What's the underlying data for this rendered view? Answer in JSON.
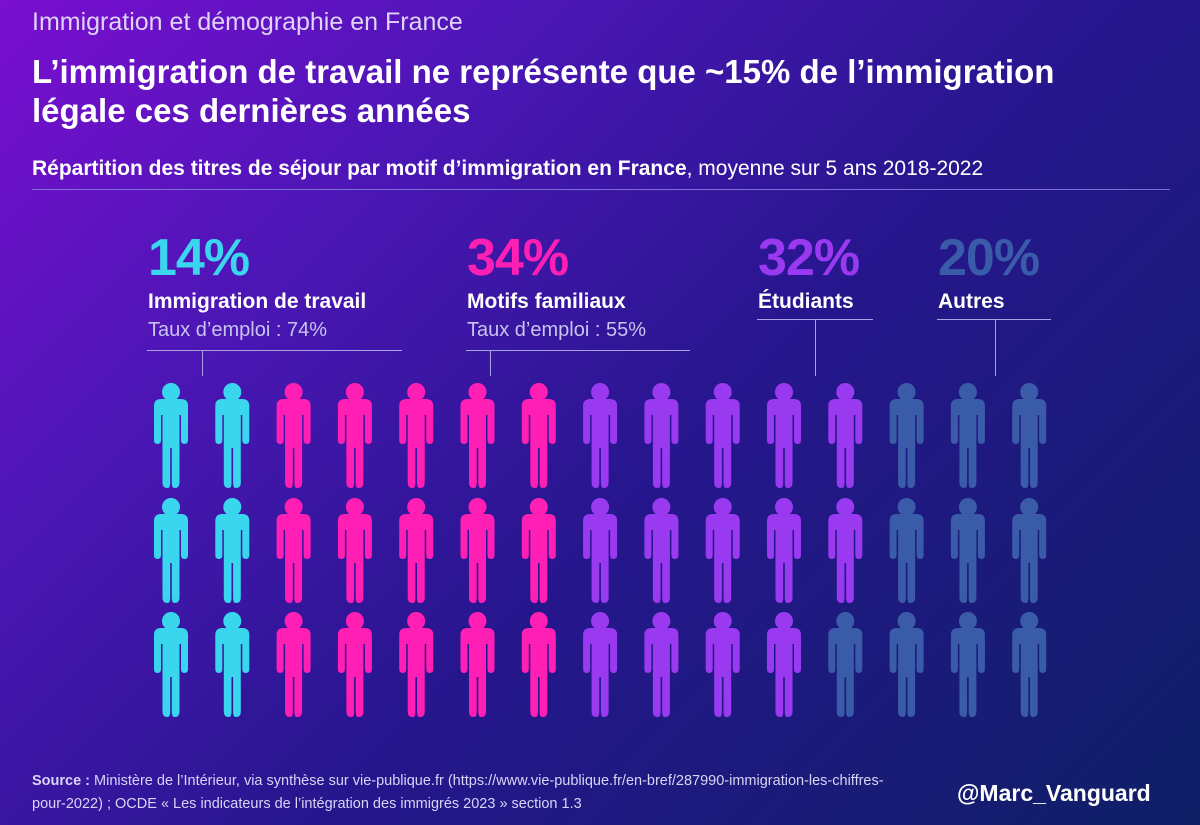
{
  "header": {
    "kicker": "Immigration et démographie en France",
    "headline": "L’immigration de travail ne représente que ~15% de l’immigration légale ces dernières années",
    "subtitle_bold": "Répartition des titres de séjour par motif d’immigration en France",
    "subtitle_rest": ", moyenne sur 5 ans 2018-2022"
  },
  "chart_data": {
    "type": "pictogram",
    "unit_count": 45,
    "rows": 3,
    "columns": 15,
    "series": [
      {
        "name": "Immigration de travail",
        "percent_label": "14%",
        "value": 14,
        "note": "Taux d’emploi : 74%",
        "color": "#3ad6ee",
        "icons": 6
      },
      {
        "name": "Motifs familiaux",
        "percent_label": "34%",
        "value": 34,
        "note": "Taux d’emploi : 55%",
        "color": "#ff1fb4",
        "icons": 15
      },
      {
        "name": "Étudiants",
        "percent_label": "32%",
        "value": 32,
        "note": "",
        "color": "#9a3af0",
        "icons": 14
      },
      {
        "name": "Autres",
        "percent_label": "20%",
        "value": 20,
        "note": "",
        "color": "#3a5ba8",
        "icons": 10
      }
    ],
    "icon_layout_by_row": [
      [
        "Immigration de travail",
        "Immigration de travail",
        "Motifs familiaux",
        "Motifs familiaux",
        "Motifs familiaux",
        "Motifs familiaux",
        "Motifs familiaux",
        "Étudiants",
        "Étudiants",
        "Étudiants",
        "Étudiants",
        "Étudiants",
        "Autres",
        "Autres",
        "Autres"
      ],
      [
        "Immigration de travail",
        "Immigration de travail",
        "Motifs familiaux",
        "Motifs familiaux",
        "Motifs familiaux",
        "Motifs familiaux",
        "Motifs familiaux",
        "Étudiants",
        "Étudiants",
        "Étudiants",
        "Étudiants",
        "Étudiants",
        "Autres",
        "Autres",
        "Autres"
      ],
      [
        "Immigration de travail",
        "Immigration de travail",
        "Motifs familiaux",
        "Motifs familiaux",
        "Motifs familiaux",
        "Motifs familiaux",
        "Motifs familiaux",
        "Étudiants",
        "Étudiants",
        "Étudiants",
        "Étudiants",
        "Autres",
        "Autres",
        "Autres",
        "Autres"
      ]
    ]
  },
  "footer": {
    "source_label": "Source :",
    "source_text": " Ministère de l’Intérieur, via synthèse sur vie-publique.fr (https://www.vie-publique.fr/en-bref/287990-immigration-les-chiffres-pour-2022) ; OCDE « Les indicateurs de l’intégration des immigrés 2023 »  section 1.3",
    "handle": "@Marc_Vanguard"
  }
}
